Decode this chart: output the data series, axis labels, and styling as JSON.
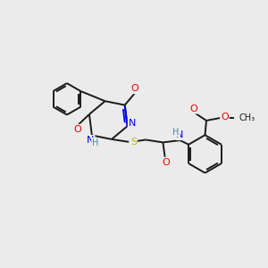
{
  "background_color": "#ebebeb",
  "bond_color": "#1a1a1a",
  "atom_colors": {
    "N": "#0000ee",
    "O": "#ee0000",
    "S": "#bbbb00",
    "H": "#4488aa",
    "C": "#1a1a1a"
  },
  "font_size": 8,
  "fig_size": [
    3.0,
    3.0
  ],
  "dpi": 100
}
